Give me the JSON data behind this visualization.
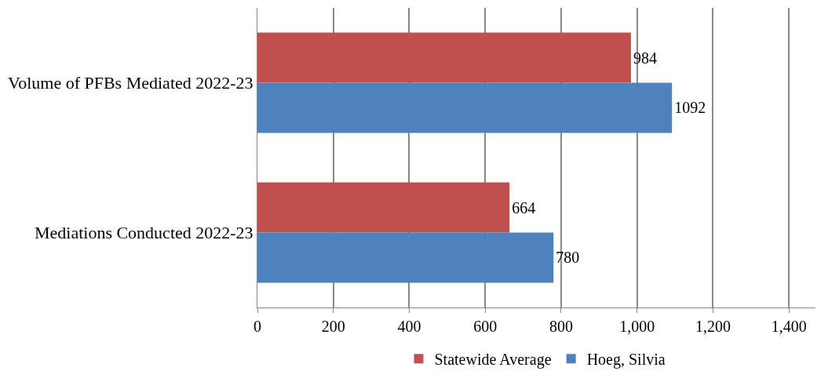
{
  "chart_data": {
    "type": "bar",
    "orientation": "horizontal",
    "categories": [
      "Volume of PFBs Mediated 2022-23",
      "Mediations Conducted 2022-23"
    ],
    "series": [
      {
        "name": "Statewide Average",
        "color": "#c0504d",
        "values": [
          984,
          664
        ]
      },
      {
        "name": "Hoeg, Silvia",
        "color": "#4f81bd",
        "values": [
          1092,
          780
        ]
      }
    ],
    "xlim": [
      0,
      1470
    ],
    "xticks": [
      0,
      {
        "value": 200,
        "label": "200"
      },
      {
        "value": 400,
        "label": "400"
      },
      {
        "value": 600,
        "label": "600"
      },
      {
        "value": 800,
        "label": "800"
      },
      {
        "value": 1000,
        "label": "1,000"
      },
      {
        "value": 1200,
        "label": "1,200"
      },
      {
        "value": 1400,
        "label": "1,400"
      }
    ],
    "grid": "x",
    "legend": "bottom",
    "data_labels": true
  }
}
